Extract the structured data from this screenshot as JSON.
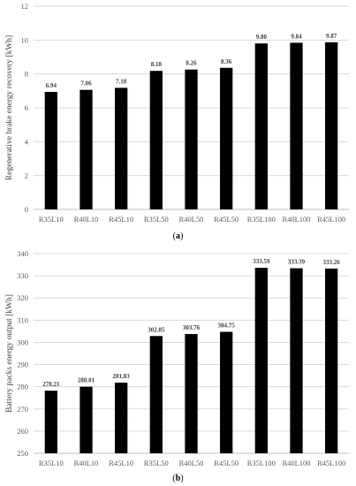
{
  "chart_data": [
    {
      "type": "bar",
      "panel": "(a)",
      "ylabel": "Regenerative brake energy recovery [kWh]",
      "xlabel": "",
      "ylim": [
        0,
        12
      ],
      "yticks": [
        0,
        2,
        4,
        6,
        8,
        10,
        12
      ],
      "categories": [
        "R35L10",
        "R40L10",
        "R45L10",
        "R35L50",
        "R40L50",
        "R45L50",
        "R35L100",
        "R40L100",
        "R45L100"
      ],
      "values": [
        6.94,
        7.06,
        7.18,
        8.18,
        8.26,
        8.36,
        9.8,
        9.84,
        9.87
      ],
      "data_labels": [
        "6.94",
        "7.06",
        "7.18",
        "8.18",
        "8.26",
        "8.36",
        "9.80",
        "9.84",
        "9.87"
      ],
      "bar_color": "#000000",
      "grid": "horizontal"
    },
    {
      "type": "bar",
      "panel": "(b)",
      "ylabel": "Battery packs energy output [kWh]",
      "xlabel": "",
      "ylim": [
        250,
        340
      ],
      "yticks": [
        250,
        260,
        270,
        280,
        290,
        300,
        310,
        320,
        330,
        340
      ],
      "categories": [
        "R35L10",
        "R40L10",
        "R45L10",
        "R35L50",
        "R40L50",
        "R45L50",
        "R35L100",
        "R40L100",
        "R45L100"
      ],
      "values": [
        278.21,
        280.01,
        281.83,
        302.85,
        303.76,
        304.75,
        333.59,
        333.39,
        333.26
      ],
      "data_labels": [
        "278.21",
        "280.01",
        "281.83",
        "302.85",
        "303.76",
        "304.75",
        "333.59",
        "333.39",
        "333.26"
      ],
      "bar_color": "#000000",
      "grid": "horizontal"
    }
  ]
}
